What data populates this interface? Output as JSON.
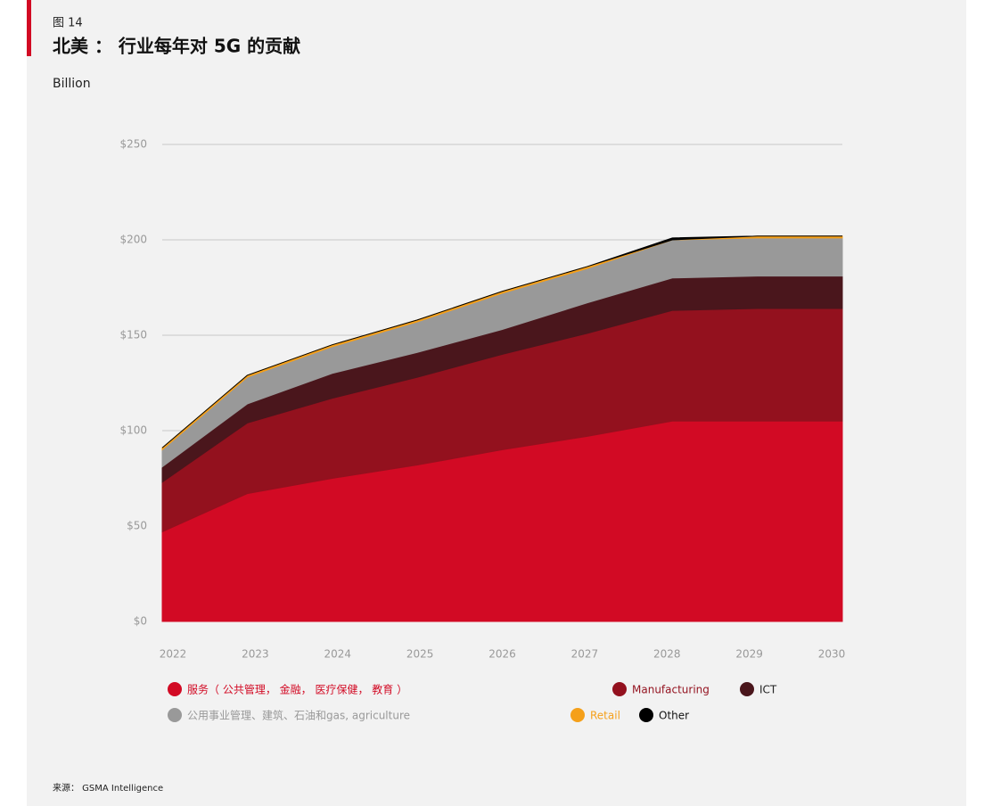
{
  "chart_data": {
    "type": "stacked_area",
    "figure_label": "图 14",
    "title": "北美 ： 行业每年对 5G 的贡献",
    "y_label": "Billion",
    "source": "来源： GSMA Intelligence",
    "categories": [
      "2022",
      "2023",
      "2024",
      "2025",
      "2026",
      "2027",
      "2028",
      "2029",
      "2030"
    ],
    "series": [
      {
        "name": "服务（ 公共管理， 金融， 医疗保健， 教育 ）",
        "color": "#d20a24",
        "values": [
          47,
          67,
          75,
          82,
          90,
          97,
          105,
          105,
          105
        ]
      },
      {
        "name": "Manufacturing",
        "color": "#93111e",
        "values": [
          26,
          37,
          42,
          46,
          50,
          54,
          58,
          59,
          59
        ]
      },
      {
        "name": "ICT",
        "color": "#4a161c",
        "values": [
          8,
          10,
          13,
          13,
          13,
          16,
          17,
          17,
          17
        ]
      },
      {
        "name": "公用事业管理、建筑、石油和gas, agriculture",
        "color": "#999999",
        "values": [
          9,
          14,
          14,
          16,
          19,
          18,
          20,
          20,
          20
        ]
      },
      {
        "name": "Retail",
        "color": "#f5a01a",
        "values": [
          1,
          1,
          1,
          1,
          1,
          1,
          0,
          1,
          1
        ]
      },
      {
        "name": "Other",
        "color": "#000000",
        "values": [
          0,
          0,
          0,
          0,
          0,
          0,
          1,
          0,
          0
        ]
      }
    ],
    "ylim": [
      0,
      250
    ],
    "yticks": [
      {
        "value": 0,
        "label": "$0"
      },
      {
        "value": 50,
        "label": "$50"
      },
      {
        "value": 100,
        "label": "$100"
      },
      {
        "value": 150,
        "label": "$150"
      },
      {
        "value": 200,
        "label": "$200"
      },
      {
        "value": 250,
        "label": "$250"
      }
    ],
    "grid": true
  }
}
